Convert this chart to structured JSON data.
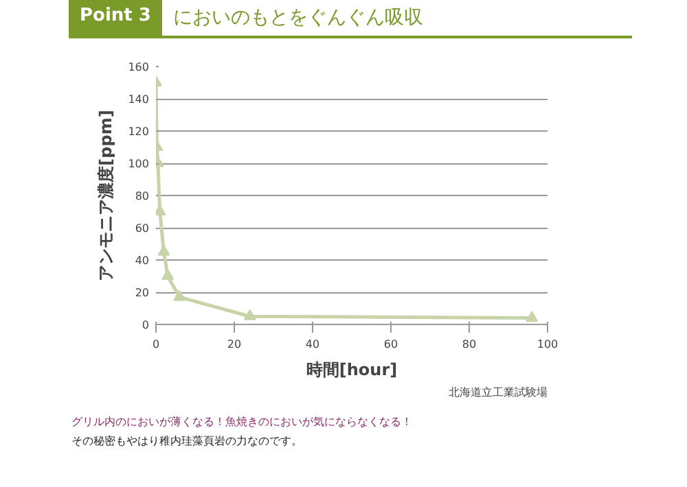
{
  "chart_data": {
    "type": "line",
    "subtitle": "Point 3",
    "title": "においのもとをぐんぐん吸収",
    "xlabel": "時間[hour]",
    "ylabel": "アンモニア濃度[ppm]",
    "x": [
      0,
      0.25,
      0.5,
      1,
      2,
      3,
      6,
      24,
      96
    ],
    "series": [
      {
        "color": "#c8d4a8",
        "values": [
          150,
          110,
          100,
          70,
          45,
          30,
          17,
          5,
          4
        ]
      }
    ],
    "xlim": [
      0,
      100
    ],
    "ylim": [
      0,
      160
    ],
    "xticks": [
      0,
      20,
      40,
      60,
      80,
      100
    ],
    "yticks": [
      0,
      20,
      40,
      60,
      80,
      100,
      120,
      140,
      160
    ],
    "grid": "y",
    "marker": "triangle",
    "line_style": "solid",
    "annotations": [
      "北海道立工業試験場",
      "グリル内のにおいが薄くなる！魚焼きのにおいが気にならなくなる！",
      "その秘密もやはり稚内珪藻頁岩の力なのです。"
    ]
  }
}
